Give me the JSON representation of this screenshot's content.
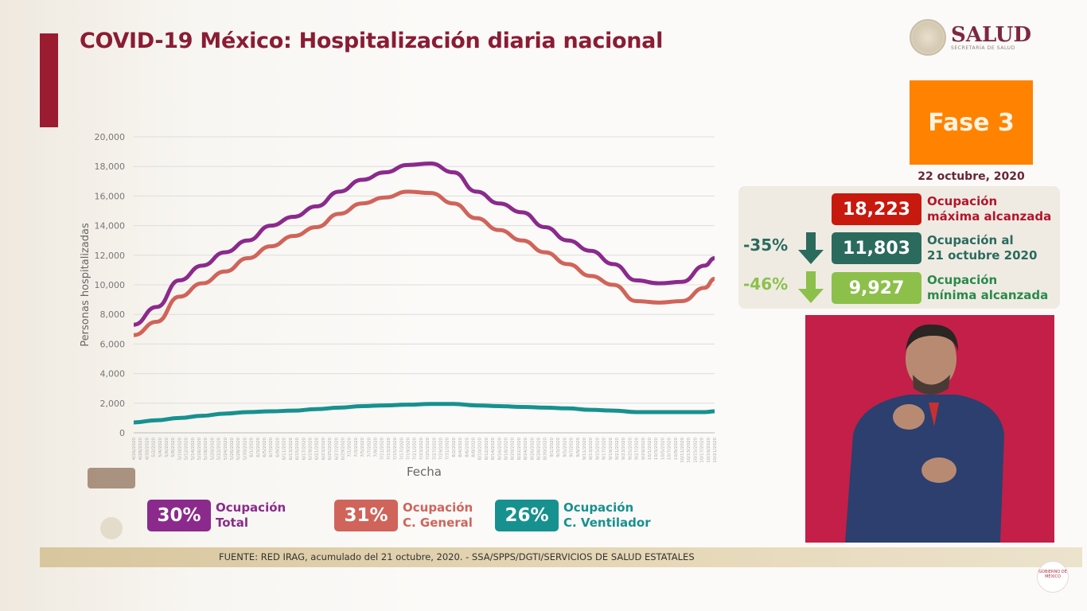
{
  "header": {
    "title": "COVID-19 México: Hospitalización diaria nacional",
    "logo_text": "SALUD",
    "logo_subtext": "SECRETARÍA DE SALUD"
  },
  "phase": {
    "label": "Fase 3",
    "date": "22 octubre, 2020",
    "color": "#ff8200"
  },
  "stats": [
    {
      "value": "18,223",
      "label_line1": "Ocupación",
      "label_line2": "máxima alcanzada",
      "color": "#c8190f",
      "text_color": "#b2162c"
    },
    {
      "value": "11,803",
      "label_line1": "Ocupación al",
      "label_line2": "21 octubre 2020",
      "color": "#2b6b5e",
      "text_color": "#2b6b5e",
      "change": "-35%"
    },
    {
      "value": "9,927",
      "label_line1": "Ocupación",
      "label_line2": "mínima alcanzada",
      "color": "#8cc04b",
      "text_color": "#2a8a4a",
      "change": "-46%"
    }
  ],
  "legend": [
    {
      "pct": "30%",
      "line1": "Ocupación",
      "line2": "Total",
      "color": "#8b2a8c"
    },
    {
      "pct": "31%",
      "line1": "Ocupación",
      "line2": "C. General",
      "color": "#d0645a"
    },
    {
      "pct": "26%",
      "line1": "Ocupación",
      "line2": "C. Ventilador",
      "color": "#17918f"
    }
  ],
  "footer": "FUENTE: RED IRAG, acumulado del 21 octubre, 2020. -  SSA/SPPS/DGTI/SERVICIOS DE SALUD ESTATALES",
  "corner_logo_text": "GOBIERNO DE MÉXICO",
  "chart_data": {
    "type": "line",
    "title": "",
    "xlabel": "Fecha",
    "ylabel": "Personas hospitalizadas",
    "ylim": [
      0,
      20000
    ],
    "yticks": [
      "0",
      "2,000",
      "4,000",
      "6,000",
      "8,000",
      "10,000",
      "12,000",
      "14,000",
      "16,000",
      "18,000",
      "20,000"
    ],
    "x_range": [
      "2020-04-26",
      "2020-10-21"
    ],
    "x_tick_interval_days": 2,
    "grid": true,
    "x": [
      "2020-04-26",
      "2020-05-03",
      "2020-05-10",
      "2020-05-17",
      "2020-05-24",
      "2020-05-31",
      "2020-06-07",
      "2020-06-14",
      "2020-06-21",
      "2020-06-28",
      "2020-07-05",
      "2020-07-12",
      "2020-07-19",
      "2020-07-26",
      "2020-08-02",
      "2020-08-09",
      "2020-08-16",
      "2020-08-23",
      "2020-08-30",
      "2020-09-06",
      "2020-09-13",
      "2020-09-20",
      "2020-09-27",
      "2020-10-04",
      "2020-10-11",
      "2020-10-18",
      "2020-10-21"
    ],
    "series": [
      {
        "name": "Ocupación Total",
        "color": "#8b2a8c",
        "values": [
          7300,
          8500,
          10300,
          11300,
          12200,
          13000,
          14000,
          14600,
          15300,
          16300,
          17100,
          17600,
          18100,
          18200,
          17600,
          16300,
          15500,
          14900,
          13900,
          13000,
          12300,
          11400,
          10300,
          10100,
          10200,
          11300,
          11803
        ]
      },
      {
        "name": "Ocupación C. General",
        "color": "#d0645a",
        "values": [
          6600,
          7500,
          9200,
          10100,
          10900,
          11800,
          12600,
          13300,
          13900,
          14800,
          15500,
          15900,
          16300,
          16200,
          15500,
          14500,
          13700,
          13000,
          12200,
          11400,
          10600,
          10000,
          8900,
          8800,
          8900,
          9800,
          10400
        ]
      },
      {
        "name": "Ocupación C. Ventilador",
        "color": "#17918f",
        "values": [
          700,
          850,
          1000,
          1150,
          1300,
          1400,
          1450,
          1500,
          1600,
          1700,
          1800,
          1850,
          1900,
          1950,
          1950,
          1850,
          1800,
          1750,
          1700,
          1650,
          1550,
          1500,
          1400,
          1400,
          1400,
          1400,
          1450
        ]
      }
    ]
  }
}
